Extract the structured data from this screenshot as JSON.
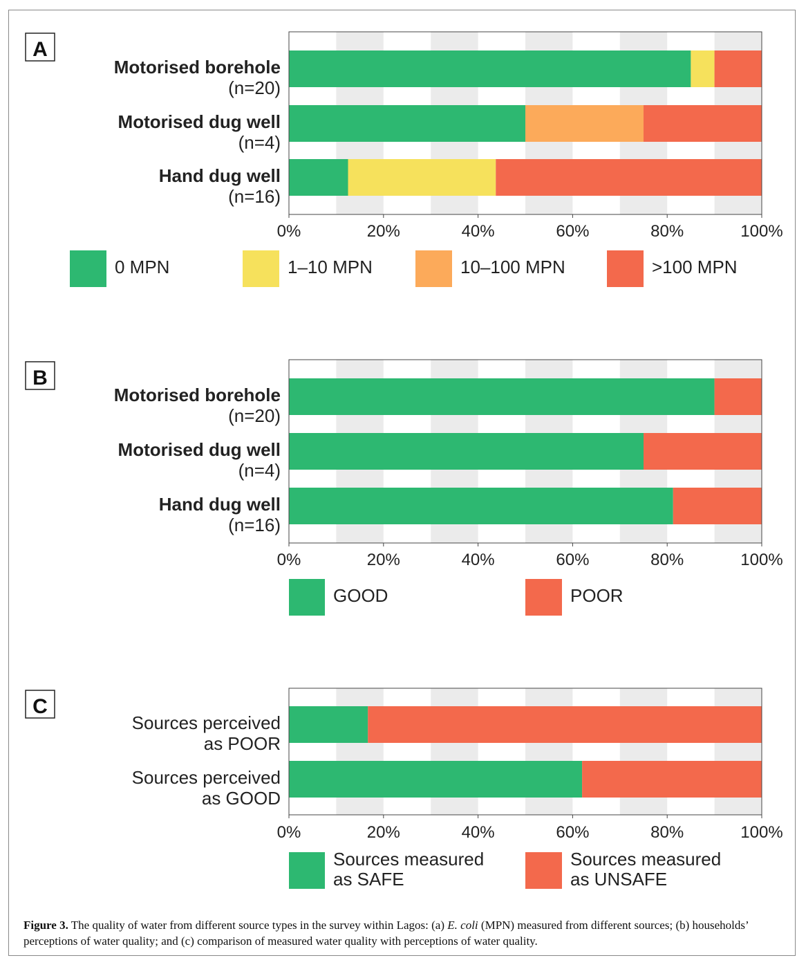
{
  "colors": {
    "green": "#2db871",
    "yellow": "#f6e15c",
    "orange": "#fcaa5a",
    "red": "#f3694c",
    "band": "#ebebeb"
  },
  "chart_data": [
    {
      "panel": "A",
      "type": "bar",
      "orientation": "horizontal",
      "stacked": true,
      "categories": [
        {
          "label": "Motorised borehole",
          "sublabel": "(n=20)",
          "bold": true
        },
        {
          "label": "Motorised dug well",
          "sublabel": "(n=4)",
          "bold": true
        },
        {
          "label": "Hand dug well",
          "sublabel": "(n=16)",
          "bold": true
        }
      ],
      "series": [
        {
          "name": "0 MPN",
          "color": "#2db871",
          "values": [
            85,
            50,
            12.5
          ]
        },
        {
          "name": "1–10 MPN",
          "color": "#f6e15c",
          "values": [
            5,
            0,
            31.25
          ]
        },
        {
          "name": "10–100 MPN",
          "color": "#fcaa5a",
          "values": [
            0,
            25,
            0
          ]
        },
        {
          "name": ">100 MPN",
          "color": "#f3694c",
          "values": [
            10,
            25,
            56.25
          ]
        }
      ],
      "xlim": [
        0,
        100
      ],
      "x_ticks": [
        "0%",
        "20%",
        "40%",
        "60%",
        "80%",
        "100%"
      ]
    },
    {
      "panel": "B",
      "type": "bar",
      "orientation": "horizontal",
      "stacked": true,
      "categories": [
        {
          "label": "Motorised borehole",
          "sublabel": "(n=20)",
          "bold": true
        },
        {
          "label": "Motorised dug well",
          "sublabel": "(n=4)",
          "bold": true
        },
        {
          "label": "Hand dug well",
          "sublabel": "(n=16)",
          "bold": true
        }
      ],
      "series": [
        {
          "name": "GOOD",
          "color": "#2db871",
          "values": [
            90,
            75,
            81.25
          ]
        },
        {
          "name": "POOR",
          "color": "#f3694c",
          "values": [
            10,
            25,
            18.75
          ]
        }
      ],
      "xlim": [
        0,
        100
      ],
      "x_ticks": [
        "0%",
        "20%",
        "40%",
        "60%",
        "80%",
        "100%"
      ]
    },
    {
      "panel": "C",
      "type": "bar",
      "orientation": "horizontal",
      "stacked": true,
      "categories": [
        {
          "label": "Sources perceived",
          "sublabel": "as POOR",
          "bold": false
        },
        {
          "label": "Sources perceived",
          "sublabel": "as GOOD",
          "bold": false
        }
      ],
      "series": [
        {
          "name": "Sources measured",
          "name2": "as SAFE",
          "color": "#2db871",
          "values": [
            16.7,
            62
          ]
        },
        {
          "name": "Sources measured",
          "name2": "as UNSAFE",
          "color": "#f3694c",
          "values": [
            83.3,
            38
          ]
        }
      ],
      "xlim": [
        0,
        100
      ],
      "x_ticks": [
        "0%",
        "20%",
        "40%",
        "60%",
        "80%",
        "100%"
      ]
    }
  ],
  "caption": {
    "label": "Figure 3.",
    "text_1": " The quality of water from different source types in the survey within Lagos: (a) ",
    "ecoli": "E. coli",
    "text_2": " (MPN) measured from different sources; (b) households’ perceptions of water quality; and (c) comparison of measured water quality with perceptions of water quality."
  }
}
